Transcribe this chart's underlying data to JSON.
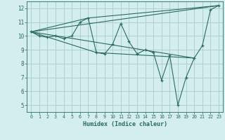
{
  "xlabel": "Humidex (Indice chaleur)",
  "ylabel": "",
  "bg_color": "#d4eeed",
  "line_color": "#2a6b5e",
  "grid_color": "#a8ccc8",
  "xlim": [
    -0.5,
    23.5
  ],
  "ylim": [
    4.5,
    12.5
  ],
  "xticks": [
    0,
    1,
    2,
    3,
    4,
    5,
    6,
    7,
    8,
    9,
    10,
    11,
    12,
    13,
    14,
    15,
    16,
    17,
    18,
    19,
    20,
    21,
    22,
    23
  ],
  "yticks": [
    5,
    6,
    7,
    8,
    9,
    10,
    11,
    12
  ],
  "main_x": [
    0,
    1,
    2,
    3,
    4,
    5,
    6,
    7,
    8,
    9,
    10,
    11,
    12,
    13,
    14,
    15,
    16,
    17,
    18,
    19,
    20,
    21,
    22,
    23
  ],
  "main_y": [
    10.3,
    10.0,
    9.9,
    10.0,
    9.8,
    10.0,
    11.0,
    11.3,
    8.8,
    8.7,
    9.4,
    10.9,
    9.6,
    8.7,
    9.0,
    8.8,
    6.8,
    8.6,
    5.0,
    7.0,
    8.4,
    9.3,
    11.9,
    12.2
  ],
  "line2_x": [
    0,
    23
  ],
  "line2_y": [
    10.3,
    12.2
  ],
  "line3_x": [
    0,
    7,
    23
  ],
  "line3_y": [
    10.3,
    11.3,
    12.2
  ],
  "line4_x": [
    0,
    8,
    20
  ],
  "line4_y": [
    10.3,
    8.8,
    8.4
  ],
  "line5_x": [
    0,
    20
  ],
  "line5_y": [
    10.3,
    8.4
  ]
}
